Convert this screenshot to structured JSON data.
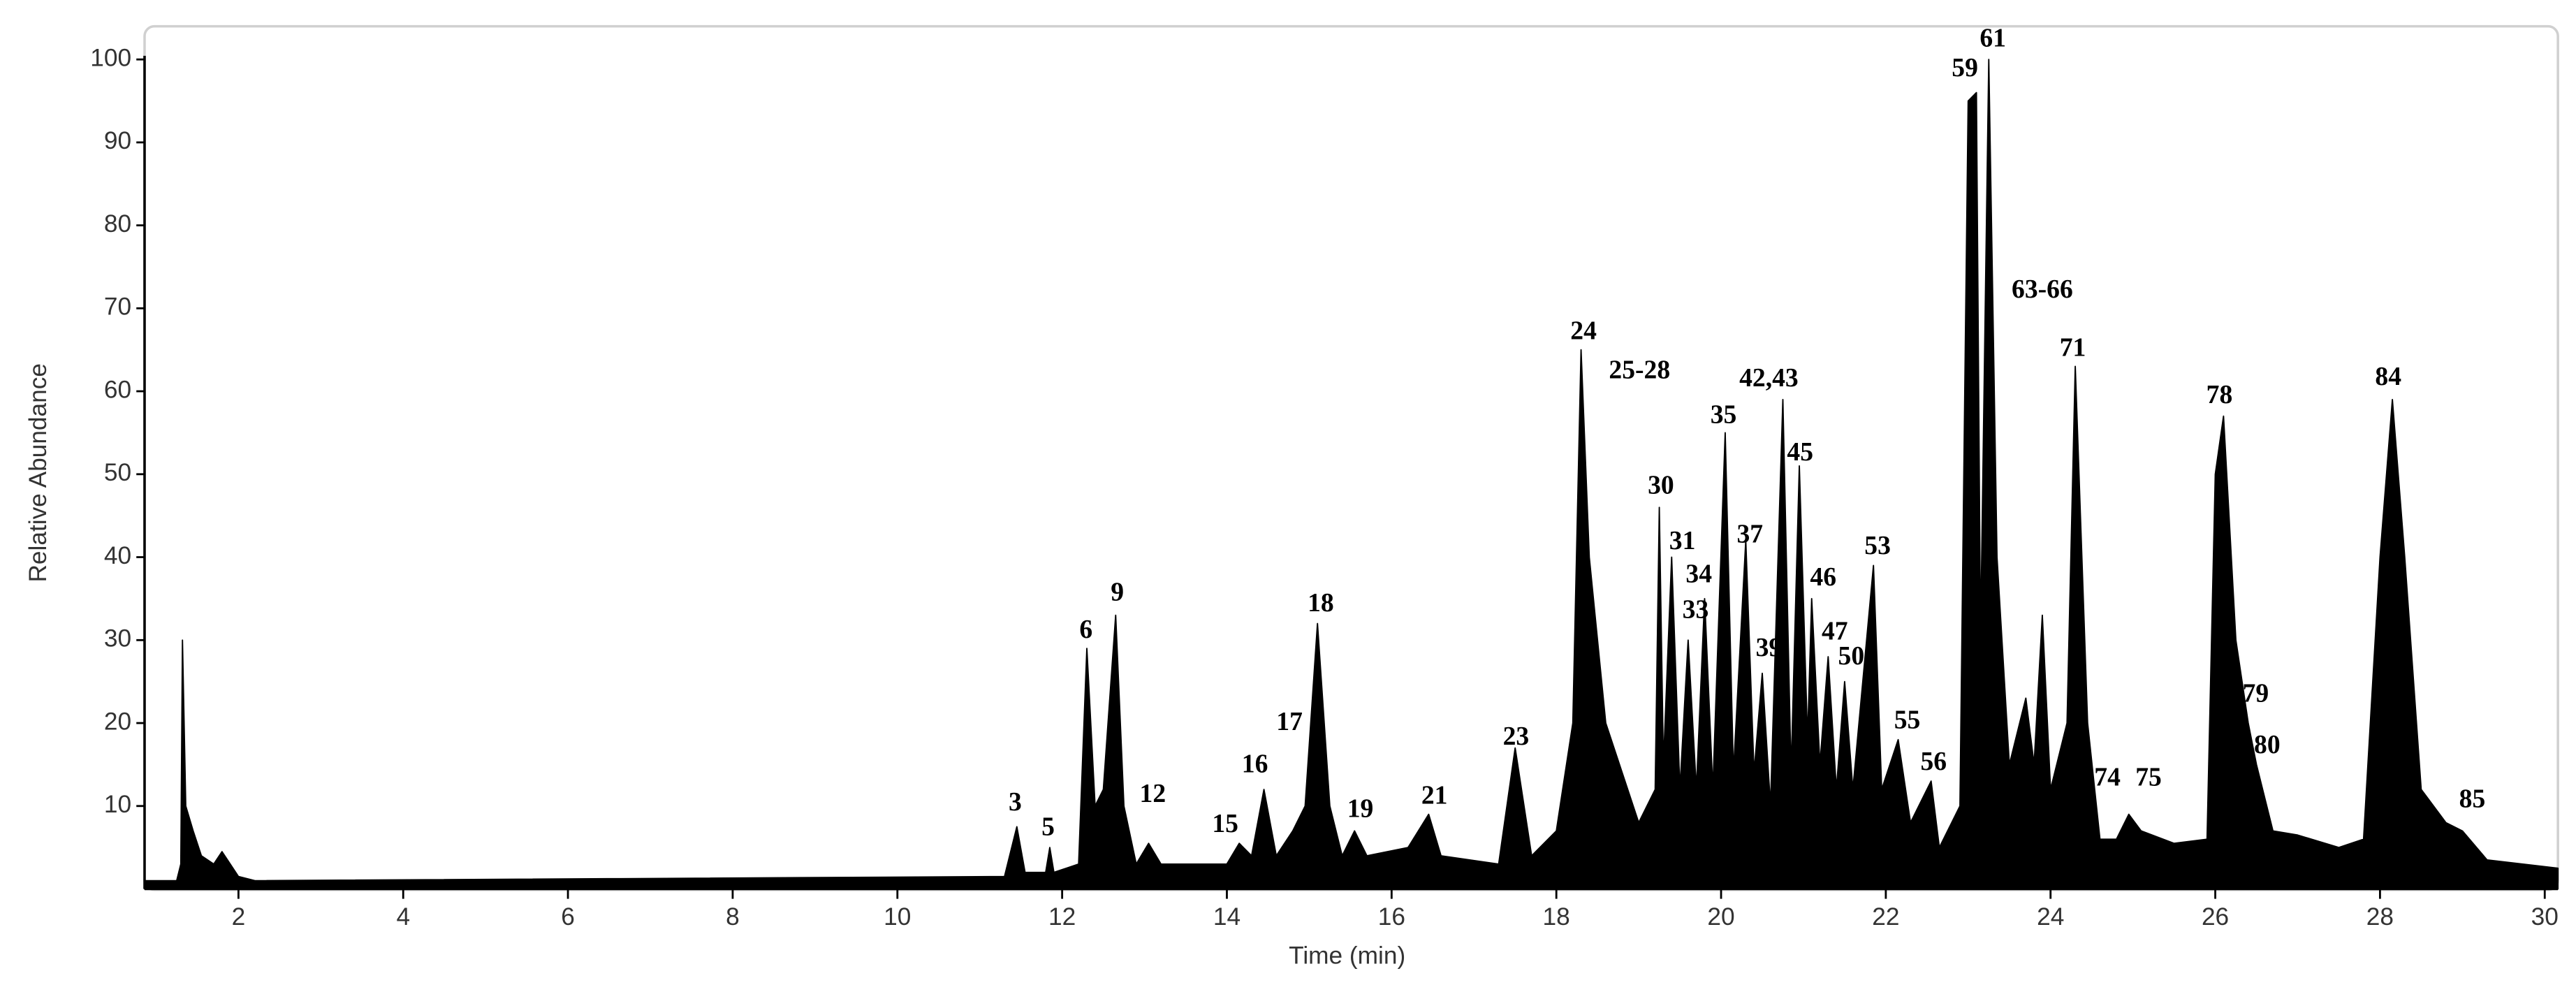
{
  "chart_data": {
    "type": "area",
    "color": "#000000",
    "xlabel": "Time (min)",
    "ylabel": "Relative Abundance",
    "xlim": [
      0.86,
      30.16
    ],
    "xticks": [
      2,
      4,
      6,
      8,
      10,
      12,
      14,
      16,
      18,
      20,
      22,
      24,
      26,
      28,
      30
    ],
    "ylim": [
      0,
      104
    ],
    "yticks": [
      10,
      20,
      30,
      40,
      50,
      60,
      70,
      80,
      90,
      100
    ],
    "x": [
      0.86,
      1.25,
      1.3,
      1.32,
      1.36,
      1.45,
      1.55,
      1.7,
      1.8,
      1.9,
      2.0,
      2.2,
      11.3,
      11.45,
      11.55,
      11.8,
      11.85,
      11.9,
      12.2,
      12.3,
      12.4,
      12.5,
      12.65,
      12.75,
      12.9,
      13.05,
      13.2,
      13.5,
      14.0,
      14.15,
      14.3,
      14.45,
      14.6,
      14.8,
      14.95,
      15.1,
      15.25,
      15.4,
      15.55,
      15.7,
      16.2,
      16.45,
      16.6,
      17.3,
      17.5,
      17.7,
      18.0,
      18.2,
      18.3,
      18.4,
      18.6,
      18.8,
      19.0,
      19.2,
      19.25,
      19.3,
      19.4,
      19.5,
      19.6,
      19.7,
      19.8,
      19.9,
      20.05,
      20.15,
      20.3,
      20.4,
      20.5,
      20.6,
      20.75,
      20.85,
      20.95,
      21.05,
      21.1,
      21.2,
      21.3,
      21.4,
      21.5,
      21.6,
      21.85,
      21.95,
      22.15,
      22.3,
      22.55,
      22.65,
      22.9,
      23.0,
      23.1,
      23.15,
      23.25,
      23.35,
      23.5,
      23.7,
      23.8,
      23.9,
      24.0,
      24.2,
      24.3,
      24.45,
      24.6,
      24.8,
      24.95,
      25.1,
      25.5,
      25.9,
      26.0,
      26.1,
      26.25,
      26.4,
      26.5,
      26.7,
      27.0,
      27.5,
      27.8,
      28.0,
      28.15,
      28.3,
      28.5,
      28.8,
      29.0,
      29.3,
      30.16
    ],
    "y": [
      1,
      1,
      3,
      30,
      10,
      7,
      4,
      3,
      4.5,
      3,
      1.5,
      1,
      1.5,
      7.5,
      2,
      2,
      5,
      2,
      3,
      29,
      10,
      12,
      33,
      10,
      3,
      5.5,
      3,
      3,
      3,
      5.5,
      4,
      12,
      4,
      7,
      10,
      32,
      10,
      4,
      7,
      4,
      5,
      9,
      4,
      3,
      17,
      4,
      7,
      20,
      65,
      40,
      20,
      14,
      8,
      12,
      46,
      15,
      40,
      12,
      30,
      12,
      35,
      12,
      55,
      14,
      42,
      14,
      26,
      10,
      59,
      14,
      51,
      18,
      35,
      15,
      28,
      12,
      25,
      12,
      39,
      12,
      18,
      8,
      13,
      5,
      10,
      95,
      96,
      30,
      100,
      40,
      15,
      23,
      15,
      33,
      12,
      20,
      63,
      20,
      6,
      6,
      9,
      7,
      5.5,
      6,
      50,
      57,
      30,
      20,
      15,
      7,
      6.5,
      5,
      6,
      40,
      59,
      40,
      12,
      8,
      7,
      3.5,
      2.5
    ],
    "annotations": [
      {
        "text": "3",
        "x": 11.43,
        "y": 10.2
      },
      {
        "text": "5",
        "x": 11.83,
        "y": 7.2
      },
      {
        "text": "6",
        "x": 12.29,
        "y": 31
      },
      {
        "text": "9",
        "x": 12.67,
        "y": 35.5
      },
      {
        "text": "12",
        "x": 13.1,
        "y": 11.2
      },
      {
        "text": "15",
        "x": 13.98,
        "y": 7.6
      },
      {
        "text": "16",
        "x": 14.34,
        "y": 14.8
      },
      {
        "text": "17",
        "x": 14.76,
        "y": 19.9
      },
      {
        "text": "18",
        "x": 15.14,
        "y": 34.2
      },
      {
        "text": "19",
        "x": 15.62,
        "y": 9.4
      },
      {
        "text": "21",
        "x": 16.52,
        "y": 11
      },
      {
        "text": "23",
        "x": 17.51,
        "y": 18.1
      },
      {
        "text": "24",
        "x": 18.33,
        "y": 67
      },
      {
        "text": "25-28",
        "x": 19.01,
        "y": 62.3
      },
      {
        "text": "30",
        "x": 19.27,
        "y": 48.4
      },
      {
        "text": "31",
        "x": 19.53,
        "y": 41.7
      },
      {
        "text": "34",
        "x": 19.73,
        "y": 37.7
      },
      {
        "text": "33",
        "x": 19.69,
        "y": 33.4
      },
      {
        "text": "35",
        "x": 20.03,
        "y": 56.9
      },
      {
        "text": "37",
        "x": 20.35,
        "y": 42.5
      },
      {
        "text": "39",
        "x": 20.58,
        "y": 28.8
      },
      {
        "text": "42,43",
        "x": 20.58,
        "y": 61.3
      },
      {
        "text": "45",
        "x": 20.96,
        "y": 52.4
      },
      {
        "text": "46",
        "x": 21.24,
        "y": 37.3
      },
      {
        "text": "47",
        "x": 21.38,
        "y": 30.8
      },
      {
        "text": "50",
        "x": 21.58,
        "y": 27.8
      },
      {
        "text": "53",
        "x": 21.9,
        "y": 41.1
      },
      {
        "text": "55",
        "x": 22.26,
        "y": 20.1
      },
      {
        "text": "56",
        "x": 22.58,
        "y": 15.1
      },
      {
        "text": "59",
        "x": 22.96,
        "y": 98.7
      },
      {
        "text": "61",
        "x": 23.3,
        "y": 102.3
      },
      {
        "text": "63-66",
        "x": 23.9,
        "y": 72
      },
      {
        "text": "71",
        "x": 24.27,
        "y": 65
      },
      {
        "text": "74",
        "x": 24.69,
        "y": 13.2
      },
      {
        "text": "75",
        "x": 25.19,
        "y": 13.2
      },
      {
        "text": "78",
        "x": 26.05,
        "y": 59.3
      },
      {
        "text": "79",
        "x": 26.49,
        "y": 23.3
      },
      {
        "text": "80",
        "x": 26.63,
        "y": 17.1
      },
      {
        "text": "84",
        "x": 28.1,
        "y": 61.5
      },
      {
        "text": "85",
        "x": 29.12,
        "y": 10.6
      }
    ]
  }
}
